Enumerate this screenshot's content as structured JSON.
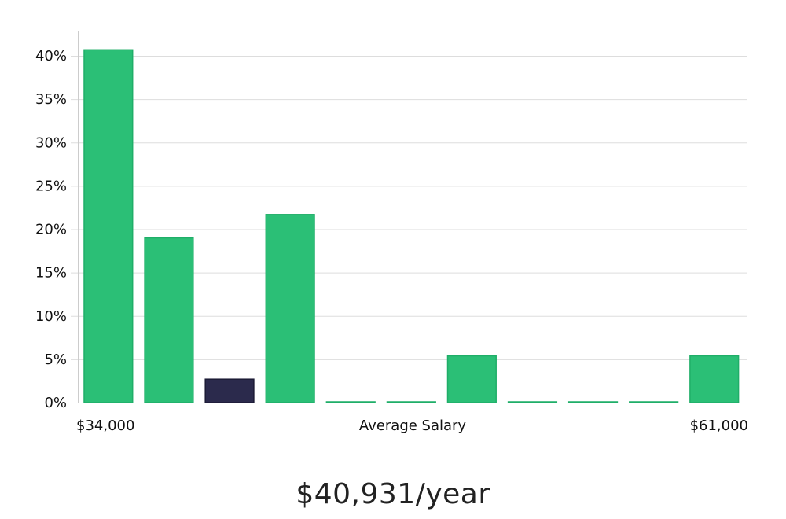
{
  "chart_data": {
    "type": "bar",
    "title": "",
    "xlabel": "Average Salary",
    "ylabel": "",
    "x_min_label": "$34,000",
    "x_max_label": "$61,000",
    "ylim": [
      0,
      40
    ],
    "y_ticks": [
      {
        "value": 0,
        "label": "0%"
      },
      {
        "value": 5,
        "label": "5%"
      },
      {
        "value": 10,
        "label": "10%"
      },
      {
        "value": 15,
        "label": "15%"
      },
      {
        "value": 20,
        "label": "20%"
      },
      {
        "value": 25,
        "label": "25%"
      },
      {
        "value": 30,
        "label": "30%"
      },
      {
        "value": 35,
        "label": "35%"
      },
      {
        "value": 40,
        "label": "40%"
      }
    ],
    "values": [
      40.7,
      19.0,
      2.7,
      21.7,
      0,
      0,
      5.4,
      0,
      0,
      0,
      5.4
    ],
    "highlight_index": 2,
    "grid": true,
    "colors": {
      "bar": "#2bbf76",
      "bar_edge": "#1fae68",
      "highlight": "#2b2a4c",
      "highlight_edge": "#1c1b36"
    }
  },
  "summary": {
    "salary_text": "$40,931/year"
  }
}
